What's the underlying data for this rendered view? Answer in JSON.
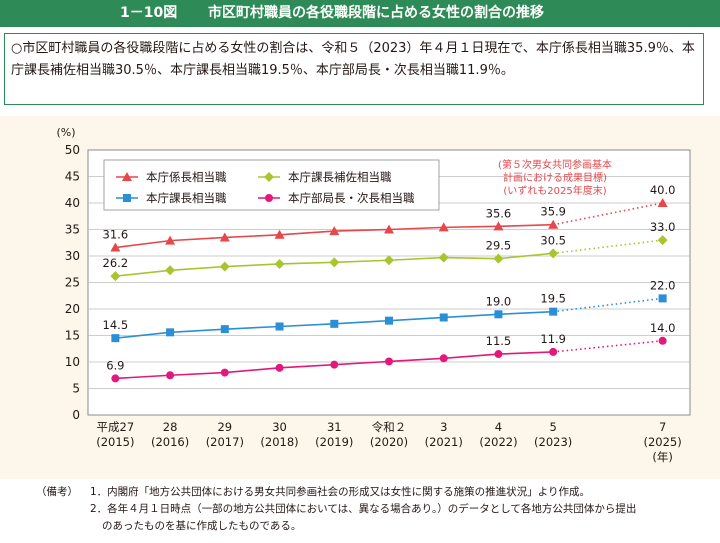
{
  "header": {
    "figure_number": "1－10図",
    "title": "市区町村職員の各役職段階に占める女性の割合の推移"
  },
  "summary": "○市区町村職員の各役職段階に占める女性の割合は、令和５（2023）年４月１日現在で、本庁係長相当職35.9％、本庁課長補佐相当職30.5％、本庁課長相当職19.5％、本庁部局長・次長相当職11.9％。",
  "notes": {
    "label": "（備考）",
    "items": [
      "1．内閣府「地方公共団体における男女共同参画社会の形成又は女性に関する施策の推進状況」より作成。",
      "2．各年４月１日時点（一部の地方公共団体においては、異なる場合あり。）のデータとして各地方公共団体から提出",
      "のあったものを基に作成したものである。"
    ]
  },
  "colors": {
    "header_bg": "#2e8b57",
    "kakari": "#e5474b",
    "hosa": "#a8c530",
    "kacho": "#2b8fd6",
    "bucho": "#e2197a",
    "target_text": "#e5474b"
  },
  "chart_data": {
    "type": "line",
    "title": "市区町村職員の各役職段階に占める女性の割合の推移",
    "ylabel": "(%)",
    "xlabel_unit": "(年)",
    "ylim": [
      0,
      50
    ],
    "yticks": [
      "0",
      "5",
      "10",
      "15",
      "20",
      "25",
      "30",
      "35",
      "40",
      "45",
      "50"
    ],
    "x": [
      2015,
      2016,
      2017,
      2018,
      2019,
      2020,
      2021,
      2022,
      2023,
      2025
    ],
    "x_labels_top": [
      "平成27",
      "28",
      "29",
      "30",
      "31",
      "令和２",
      "3",
      "4",
      "5",
      "7"
    ],
    "x_labels_bottom": [
      "(2015)",
      "(2016)",
      "(2017)",
      "(2018)",
      "(2019)",
      "(2020)",
      "(2021)",
      "(2022)",
      "(2023)",
      "(2025)"
    ],
    "target_note": [
      "(第５次男女共同参画基本",
      "計画における成果目標)",
      "(いずれも2025年度末)"
    ],
    "series": [
      {
        "name": "本庁係長相当職",
        "key": "kakari",
        "marker": "triangle",
        "values": [
          31.6,
          32.9,
          33.5,
          34.0,
          34.7,
          35.0,
          35.4,
          35.6,
          35.9,
          40.0
        ],
        "labels": {
          "0": "31.6",
          "7": "35.6",
          "8": "35.9",
          "9": "40.0"
        }
      },
      {
        "name": "本庁課長補佐相当職",
        "key": "hosa",
        "marker": "diamond",
        "values": [
          26.2,
          27.3,
          28.0,
          28.5,
          28.8,
          29.2,
          29.7,
          29.5,
          30.5,
          33.0
        ],
        "labels": {
          "0": "26.2",
          "7": "29.5",
          "8": "30.5",
          "9": "33.0"
        }
      },
      {
        "name": "本庁課長相当職",
        "key": "kacho",
        "marker": "square",
        "values": [
          14.5,
          15.6,
          16.2,
          16.7,
          17.2,
          17.8,
          18.4,
          19.0,
          19.5,
          22.0
        ],
        "labels": {
          "0": "14.5",
          "7": "19.0",
          "8": "19.5",
          "9": "22.0"
        }
      },
      {
        "name": "本庁部局長・次長相当職",
        "key": "bucho",
        "marker": "circle",
        "values": [
          6.9,
          7.5,
          8.0,
          8.9,
          9.5,
          10.1,
          10.7,
          11.5,
          11.9,
          14.0
        ],
        "labels": {
          "0": "6.9",
          "7": "11.5",
          "8": "11.9",
          "9": "14.0"
        }
      }
    ],
    "legend": [
      "本庁係長相当職",
      "本庁課長補佐相当職",
      "本庁課長相当職",
      "本庁部局長・次長相当職"
    ],
    "legend_position": "top-left",
    "grid": true
  }
}
